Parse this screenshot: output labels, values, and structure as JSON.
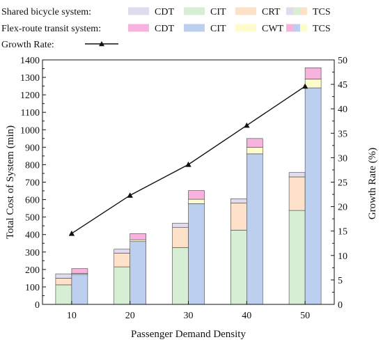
{
  "chart_data": {
    "type": "bar",
    "xlabel": "Passenger Demand Density",
    "ylabel": "Total Cost of System (min)",
    "y2label": "Growth Rate (%)",
    "categories": [
      "10",
      "20",
      "30",
      "40",
      "50"
    ],
    "ylim": [
      0,
      1400
    ],
    "y2lim": [
      0,
      50
    ],
    "yticks": [
      0,
      100,
      200,
      300,
      400,
      500,
      600,
      700,
      800,
      900,
      1000,
      1100,
      1200,
      1300,
      1400
    ],
    "y2ticks": [
      0,
      5,
      10,
      15,
      20,
      25,
      30,
      35,
      40,
      45,
      50
    ],
    "legend": {
      "rows": [
        {
          "label": "Shared bicycle system:",
          "entries": [
            {
              "label": "CDT",
              "color": "#e1dbee"
            },
            {
              "label": "CIT",
              "color": "#d6eed3"
            },
            {
              "label": "CRT",
              "color": "#fde1c8"
            },
            {
              "label": "TCS",
              "colors": [
                "#e1dbee",
                "#d6eed3",
                "#fde1c8"
              ]
            }
          ]
        },
        {
          "label": "Flex-route transit system:",
          "entries": [
            {
              "label": "CDT",
              "color": "#f7b2dd"
            },
            {
              "label": "CIT",
              "color": "#bdcfee"
            },
            {
              "label": "CWT",
              "color": "#fdfccd"
            },
            {
              "label": "TCS",
              "colors": [
                "#f7b2dd",
                "#bdcfee",
                "#fdfccd"
              ]
            }
          ]
        },
        {
          "label": "Growth Rate:",
          "entries": [
            {
              "label": "",
              "marker": "triangle-line"
            }
          ]
        }
      ]
    },
    "stacks": [
      {
        "name": "Shared bicycle system",
        "segments": [
          {
            "name": "CIT",
            "color": "#d6eed3",
            "values": [
              112,
              215,
              325,
              425,
              538
            ]
          },
          {
            "name": "CRT",
            "color": "#fde1c8",
            "values": [
              38,
              78,
              115,
              155,
              192
            ]
          },
          {
            "name": "CDT",
            "color": "#e1dbee",
            "values": [
              25,
              23,
              25,
              25,
              25
            ]
          }
        ]
      },
      {
        "name": "Flex-route transit system",
        "segments": [
          {
            "name": "CIT",
            "color": "#bdcfee",
            "values": [
              172,
              360,
              577,
              862,
              1240
            ]
          },
          {
            "name": "CWT",
            "color": "#fdfccd",
            "values": [
              5,
              10,
              25,
              38,
              50
            ]
          },
          {
            "name": "CDT",
            "color": "#f7b2dd",
            "values": [
              28,
              35,
              50,
              50,
              65
            ]
          }
        ]
      }
    ],
    "line": {
      "name": "Growth Rate",
      "axis": "right",
      "color": "#111111",
      "values": [
        14.5,
        22.3,
        28.6,
        36.6,
        44.6
      ]
    }
  }
}
